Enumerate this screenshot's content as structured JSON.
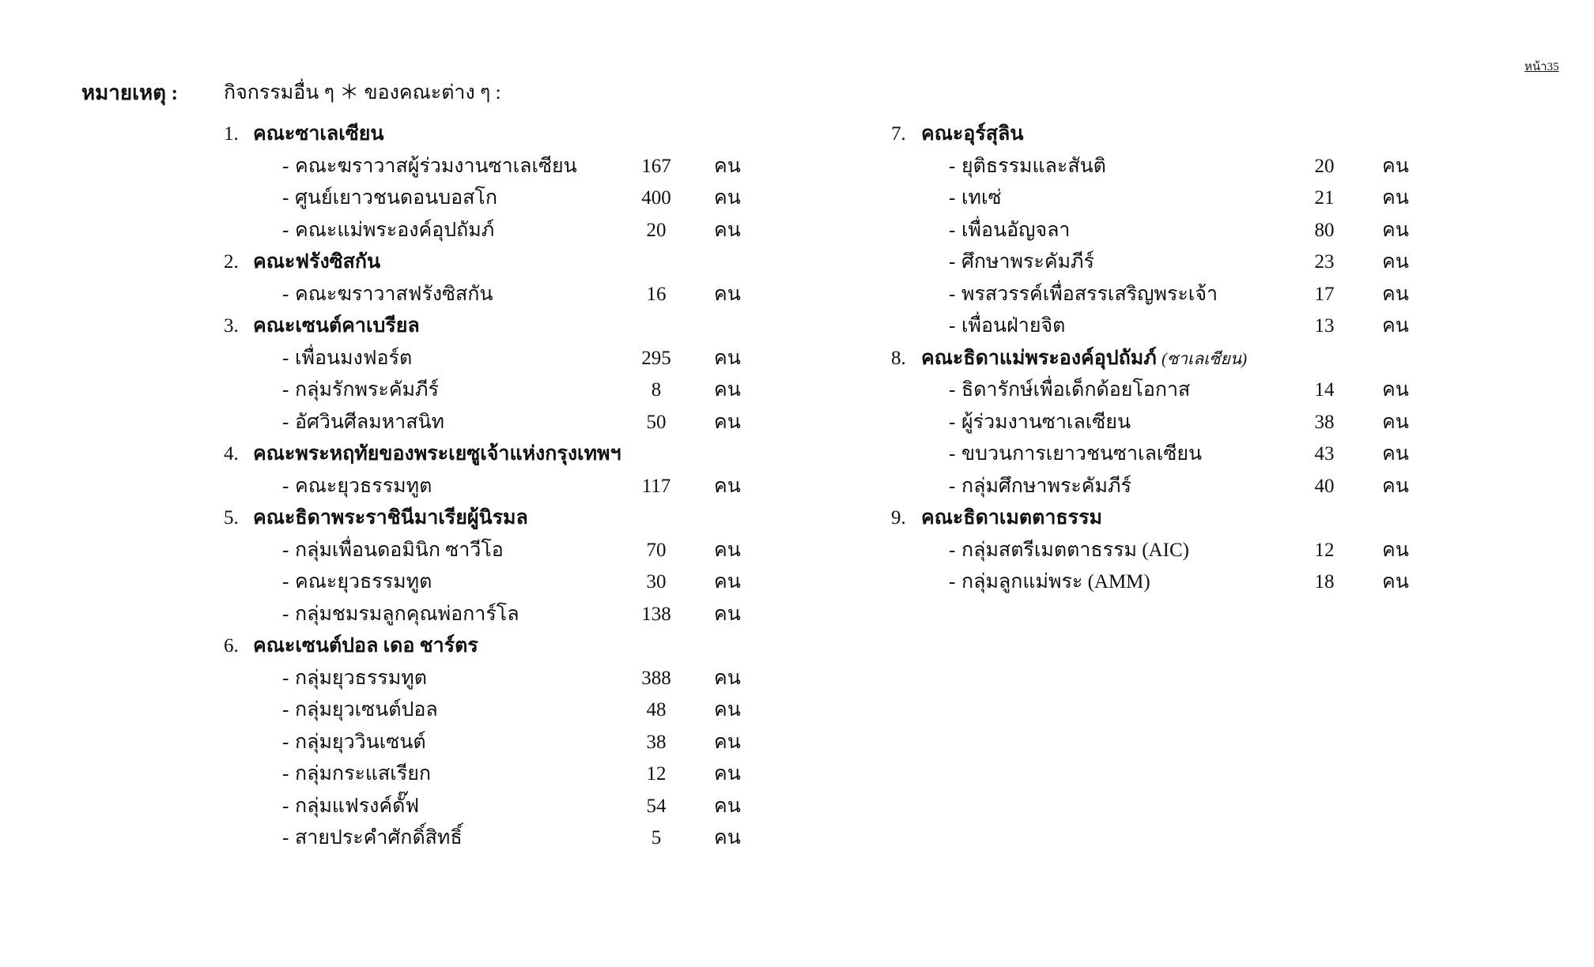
{
  "page_number": "หน้า35",
  "note": {
    "label": "หมายเหตุ :",
    "text": "กิจกรรมอื่น ๆ ＊ ของคณะต่าง ๆ :"
  },
  "unit": "คน",
  "columns": [
    {
      "groups": [
        {
          "no": "1.",
          "title": "คณะซาเลเซียน",
          "items": [
            {
              "name": "คณะฆราวาสผู้ร่วมงานซาเลเซียน",
              "count": "167"
            },
            {
              "name": "ศูนย์เยาวชนดอนบอสโก",
              "count": "400"
            },
            {
              "name": "คณะแม่พระองค์อุปถัมภ์",
              "count": "20"
            }
          ]
        },
        {
          "no": "2.",
          "title": "คณะฟรังซิสกัน",
          "items": [
            {
              "name": "คณะฆราวาสฟรังซิสกัน",
              "count": "16"
            }
          ]
        },
        {
          "no": "3.",
          "title": "คณะเซนต์คาเบรียล",
          "items": [
            {
              "name": "เพื่อนมงฟอร์ต",
              "count": "295"
            },
            {
              "name": "กลุ่มรักพระคัมภีร์",
              "count": "8"
            },
            {
              "name": "อัศวินศีลมหาสนิท",
              "count": "50"
            }
          ]
        },
        {
          "no": "4.",
          "title": "คณะพระหฤทัยของพระเยซูเจ้าแห่งกรุงเทพฯ",
          "items": [
            {
              "name": "คณะยุวธรรมทูต",
              "count": "117"
            }
          ]
        },
        {
          "no": "5.",
          "title": "คณะธิดาพระราชินีมาเรียผู้นิรมล",
          "items": [
            {
              "name": "กลุ่มเพื่อนดอมินิก ซาวีโอ",
              "count": "70"
            },
            {
              "name": "คณะยุวธรรมทูต",
              "count": "30"
            },
            {
              "name": "กลุ่มชมรมลูกคุณพ่อการ์โล",
              "count": "138"
            }
          ]
        },
        {
          "no": "6.",
          "title": "คณะเซนต์ปอล เดอ ชาร์ตร",
          "items": [
            {
              "name": "กลุ่มยุวธรรมทูต",
              "count": "388"
            },
            {
              "name": "กลุ่มยุวเซนต์ปอล",
              "count": "48"
            },
            {
              "name": "กลุ่มยุววินเซนต์",
              "count": "38"
            },
            {
              "name": "กลุ่มกระแสเรียก",
              "count": "12"
            },
            {
              "name": "กลุ่มแฟรงค์ดั๊ฟ",
              "count": "54"
            },
            {
              "name": "สายประคำศักดิ์สิทธิ์",
              "count": "5"
            }
          ]
        }
      ]
    },
    {
      "groups": [
        {
          "no": "7.",
          "title": "คณะอุร์สุลิน",
          "items": [
            {
              "name": "ยุติธรรมและสันติ",
              "count": "20"
            },
            {
              "name": "เทเซ่",
              "count": "21"
            },
            {
              "name": "เพื่อนอัญจลา",
              "count": "80"
            },
            {
              "name": "ศึกษาพระคัมภีร์",
              "count": "23"
            },
            {
              "name": "พรสวรรค์เพื่อสรรเสริญพระเจ้า",
              "count": "17"
            },
            {
              "name": "เพื่อนฝ่ายจิต",
              "count": "13"
            }
          ]
        },
        {
          "no": "8.",
          "title": "คณะธิดาแม่พระองค์อุปถัมภ์",
          "subtitle": "(ซาเลเซียน)",
          "items": [
            {
              "name": "ธิดารักษ์เพื่อเด็กด้อยโอกาส",
              "count": "14"
            },
            {
              "name": "ผู้ร่วมงานซาเลเซียน",
              "count": "38"
            },
            {
              "name": "ขบวนการเยาวชนซาเลเซียน",
              "count": "43"
            },
            {
              "name": "กลุ่มศึกษาพระคัมภีร์",
              "count": "40"
            }
          ]
        },
        {
          "no": "9.",
          "title": "คณะธิดาเมตตาธรรม",
          "items": [
            {
              "name": "กลุ่มสตรีเมตตาธรรม (AIC)",
              "count": "12"
            },
            {
              "name": "กลุ่มลูกแม่พระ (AMM)",
              "count": "18"
            }
          ]
        }
      ]
    }
  ]
}
